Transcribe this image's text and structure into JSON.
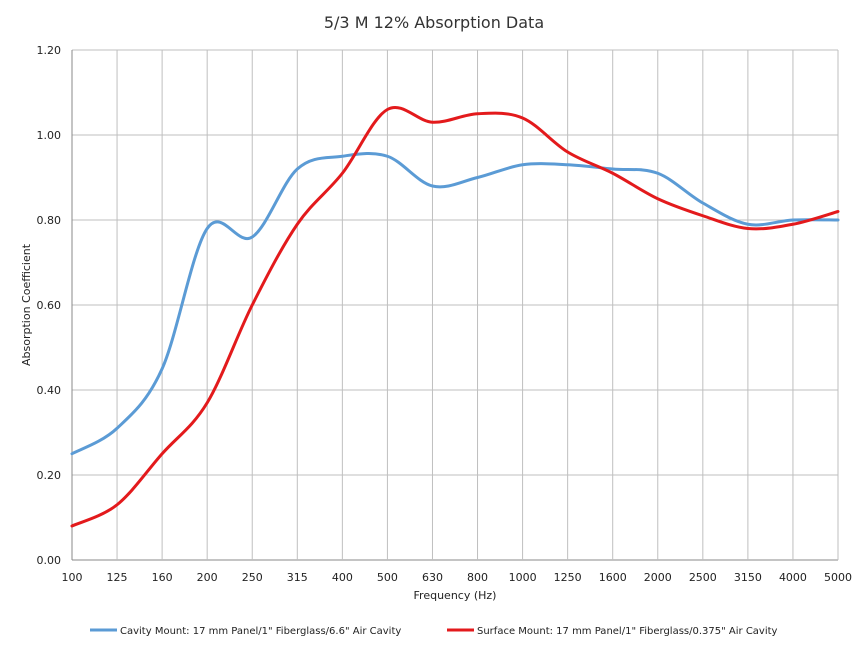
{
  "chart_data": {
    "type": "line",
    "title": "5/3 M 12% Absorption Data",
    "xlabel": "Frequency (Hz)",
    "ylabel": "Absorption Coefficient",
    "categories": [
      "100",
      "125",
      "160",
      "200",
      "250",
      "315",
      "400",
      "500",
      "630",
      "800",
      "1000",
      "1250",
      "1600",
      "2000",
      "2500",
      "3150",
      "4000",
      "5000"
    ],
    "ylim": [
      0,
      1.2
    ],
    "y_ticks": [
      "0.00",
      "0.20",
      "0.40",
      "0.60",
      "0.80",
      "1.00",
      "1.20"
    ],
    "grid": true,
    "legend_position": "bottom",
    "series": [
      {
        "name": "Cavity Mount: 17 mm Panel/1\" Fiberglass/6.6\" Air Cavity",
        "color": "#5b9bd5",
        "values": [
          0.25,
          0.31,
          0.45,
          0.78,
          0.76,
          0.92,
          0.95,
          0.95,
          0.88,
          0.9,
          0.93,
          0.93,
          0.92,
          0.91,
          0.84,
          0.79,
          0.8,
          0.8
        ]
      },
      {
        "name": "Surface Mount: 17 mm Panel/1\" Fiberglass/0.375\" Air Cavity",
        "color": "#e31a1c",
        "values": [
          0.08,
          0.13,
          0.25,
          0.37,
          0.6,
          0.79,
          0.91,
          1.06,
          1.03,
          1.05,
          1.04,
          0.96,
          0.91,
          0.85,
          0.81,
          0.78,
          0.79,
          0.82
        ]
      }
    ]
  }
}
